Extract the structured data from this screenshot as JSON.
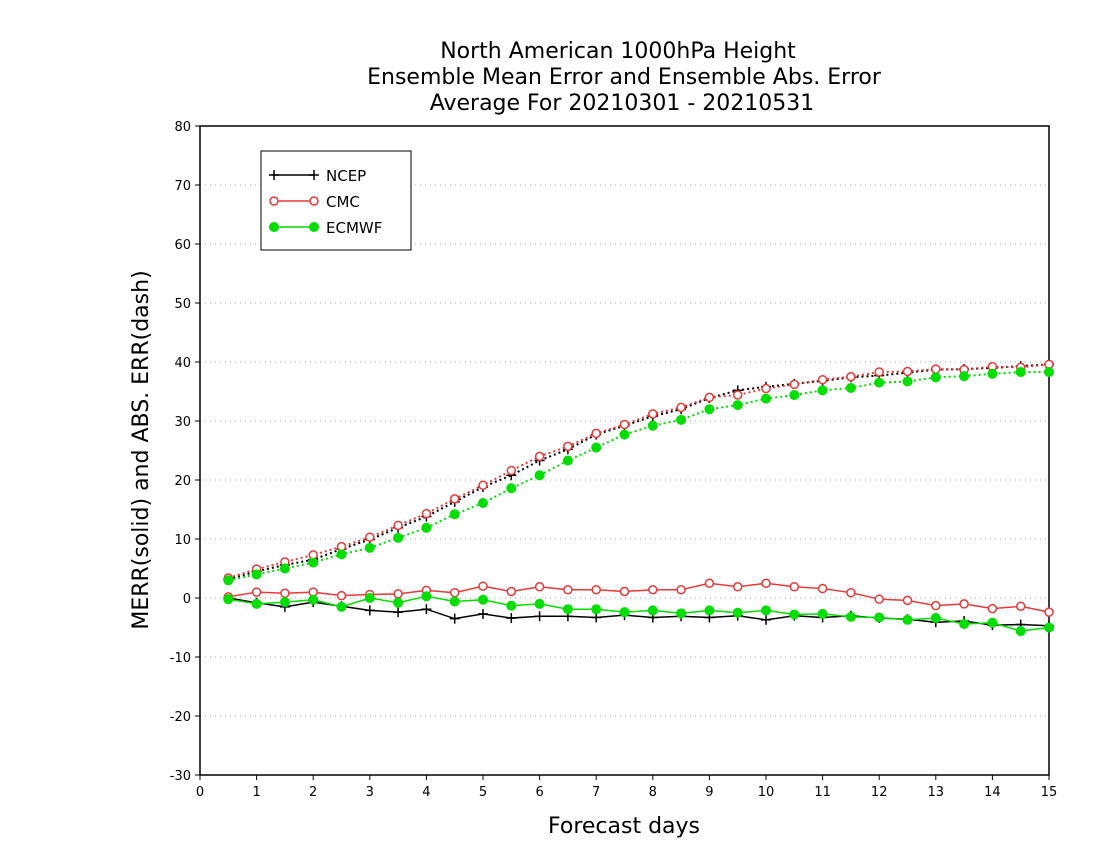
{
  "chart_data": {
    "type": "line",
    "title": [
      "North American 1000hPa Height",
      "Ensemble Mean Error and Ensemble Abs. Error",
      "Average For 20210301 - 20210531"
    ],
    "xlabel": "Forecast days",
    "ylabel": "MERR(solid) and ABS. ERR(dash)",
    "xlim": [
      0,
      15
    ],
    "ylim": [
      -30,
      80
    ],
    "x_ticks": [
      "0",
      "1",
      "2",
      "3",
      "4",
      "5",
      "6",
      "7",
      "8",
      "9",
      "10",
      "11",
      "12",
      "13",
      "14",
      "15"
    ],
    "y_ticks": [
      "-30",
      "-20",
      "-10",
      "0",
      "10",
      "20",
      "30",
      "40",
      "50",
      "60",
      "70",
      "80"
    ],
    "grid": "horizontal dotted",
    "legend_position": "top-left",
    "x": [
      0.5,
      1,
      1.5,
      2,
      2.5,
      3,
      3.5,
      4,
      4.5,
      5,
      5.5,
      6,
      6.5,
      7,
      7.5,
      8,
      8.5,
      9,
      9.5,
      10,
      10.5,
      11,
      11.5,
      12,
      12.5,
      13,
      13.5,
      14,
      14.5,
      15
    ],
    "series": [
      {
        "name": "NCEP",
        "color": "#000000",
        "marker": "plus",
        "mean_error": [
          0.0,
          -0.8,
          -1.5,
          -0.7,
          -1.4,
          -2.1,
          -2.4,
          -1.9,
          -3.5,
          -2.7,
          -3.4,
          -3.1,
          -3.1,
          -3.3,
          -2.9,
          -3.3,
          -3.1,
          -3.3,
          -3.0,
          -3.7,
          -3.0,
          -3.3,
          -3.0,
          -3.4,
          -3.6,
          -4.1,
          -3.9,
          -4.6,
          -4.5,
          -4.7
        ],
        "abs_error": [
          3.2,
          4.5,
          5.6,
          6.5,
          8.3,
          9.9,
          11.9,
          13.8,
          16.3,
          18.8,
          20.8,
          23.3,
          25.2,
          27.7,
          29.2,
          30.8,
          32.0,
          33.9,
          35.2,
          35.8,
          36.3,
          36.8,
          37.4,
          37.7,
          38.2,
          38.7,
          38.8,
          39.0,
          39.3,
          39.6
        ]
      },
      {
        "name": "CMC",
        "color": "#e83838",
        "marker": "open-circle",
        "mean_error": [
          0.2,
          1.0,
          0.8,
          1.0,
          0.4,
          0.6,
          0.7,
          1.3,
          0.9,
          2.0,
          1.1,
          1.9,
          1.4,
          1.4,
          1.1,
          1.4,
          1.4,
          2.5,
          1.9,
          2.5,
          1.9,
          1.6,
          0.9,
          -0.2,
          -0.4,
          -1.3,
          -1.0,
          -1.8,
          -1.4,
          -2.4
        ],
        "abs_error": [
          3.4,
          4.9,
          6.1,
          7.3,
          8.7,
          10.3,
          12.3,
          14.3,
          16.8,
          19.1,
          21.6,
          24.0,
          25.7,
          27.9,
          29.4,
          31.2,
          32.3,
          34.0,
          34.4,
          35.5,
          36.2,
          37.0,
          37.5,
          38.3,
          38.4,
          38.8,
          38.7,
          39.2,
          39.1,
          39.6
        ]
      },
      {
        "name": "ECMWF",
        "color": "#00dd00",
        "marker": "filled-circle",
        "mean_error": [
          -0.2,
          -1.0,
          -0.7,
          -0.3,
          -1.5,
          0.0,
          -0.8,
          0.3,
          -0.6,
          -0.3,
          -1.3,
          -1.0,
          -1.9,
          -1.9,
          -2.4,
          -2.1,
          -2.6,
          -2.1,
          -2.5,
          -2.1,
          -2.8,
          -2.7,
          -3.2,
          -3.3,
          -3.7,
          -3.4,
          -4.4,
          -4.2,
          -5.6,
          -5.0
        ],
        "abs_error": [
          3.0,
          4.0,
          5.0,
          6.0,
          7.4,
          8.5,
          10.2,
          11.9,
          14.2,
          16.1,
          18.6,
          20.8,
          23.3,
          25.5,
          27.7,
          29.2,
          30.2,
          32.0,
          32.7,
          33.8,
          34.4,
          35.2,
          35.6,
          36.5,
          36.7,
          37.4,
          37.6,
          38.0,
          38.3,
          38.3
        ]
      }
    ]
  }
}
